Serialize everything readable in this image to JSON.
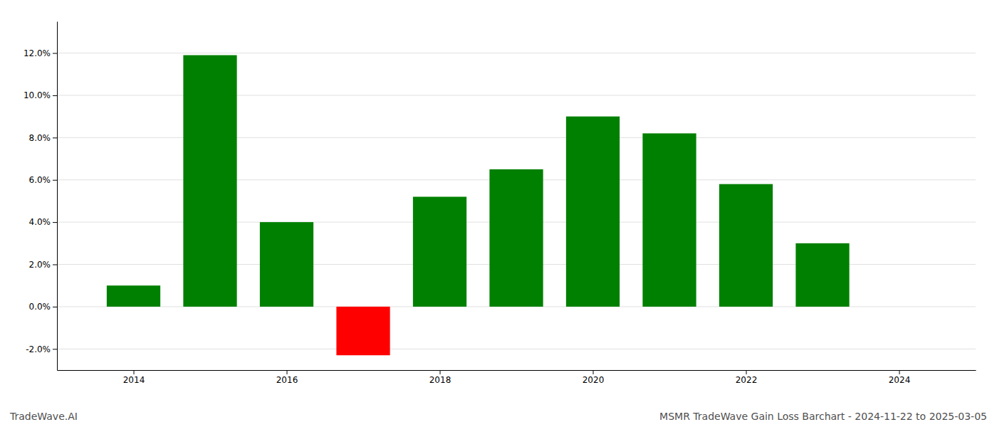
{
  "chart_data": {
    "type": "bar",
    "title": "MSMR TradeWave Gain Loss Barchart - 2024-11-22 to 2025-03-05",
    "annotations": [
      "TradeWave.AI"
    ],
    "x": [
      2014,
      2015,
      2016,
      2017,
      2018,
      2019,
      2020,
      2021,
      2022,
      2023
    ],
    "values": [
      0.01,
      0.119,
      0.04,
      -0.023,
      0.052,
      0.065,
      0.09,
      0.082,
      0.058,
      0.03
    ],
    "colors": [
      "#008000",
      "#008000",
      "#008000",
      "#ff0000",
      "#008000",
      "#008000",
      "#008000",
      "#008000",
      "#008000",
      "#008000"
    ],
    "xlim": [
      2013.0,
      2025.0
    ],
    "xticks": [
      2014,
      2016,
      2018,
      2020,
      2022,
      2024
    ],
    "ylim": [
      -0.03,
      0.135
    ],
    "yticks": [
      {
        "value": -0.02,
        "label": "-2.0%"
      },
      {
        "value": 0.0,
        "label": "0.0%"
      },
      {
        "value": 0.02,
        "label": "2.0%"
      },
      {
        "value": 0.04,
        "label": "4.0%"
      },
      {
        "value": 0.06,
        "label": "6.0%"
      },
      {
        "value": 0.08,
        "label": "8.0%"
      },
      {
        "value": 0.1,
        "label": "10.0%"
      },
      {
        "value": 0.12,
        "label": "12.0%"
      }
    ],
    "grid": true
  }
}
